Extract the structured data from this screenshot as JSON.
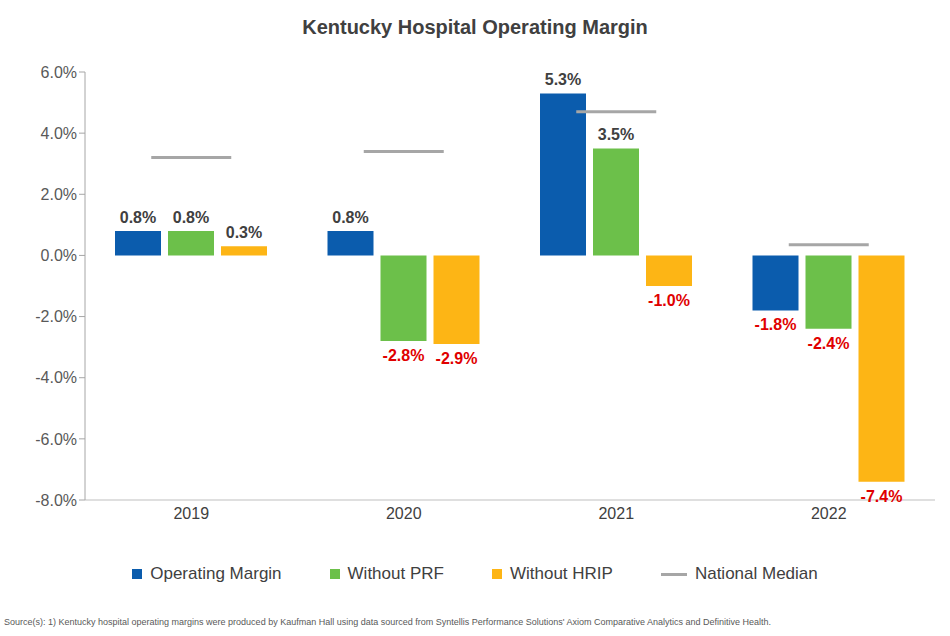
{
  "chart_data": {
    "type": "bar",
    "title": "Kentucky Hospital Operating Margin",
    "categories": [
      "2019",
      "2020",
      "2021",
      "2022"
    ],
    "series": [
      {
        "name": "Operating Margin",
        "type": "bar",
        "color": "#0B5CAD",
        "values": [
          0.8,
          0.8,
          5.3,
          -1.8
        ],
        "value_labels": [
          "0.8%",
          "0.8%",
          "5.3%",
          "-1.8%"
        ]
      },
      {
        "name": "Without PRF",
        "type": "bar",
        "color": "#6CC04A",
        "values": [
          0.8,
          -2.8,
          3.5,
          -2.4
        ],
        "value_labels": [
          "0.8%",
          "-2.8%",
          "3.5%",
          "-2.4%"
        ]
      },
      {
        "name": "Without HRIP",
        "type": "bar",
        "color": "#FDB515",
        "values": [
          0.3,
          -2.9,
          -1.0,
          -7.4
        ],
        "value_labels": [
          "0.3%",
          "-2.9%",
          "-1.0%",
          "-7.4%"
        ]
      },
      {
        "name": "National Median",
        "type": "line",
        "color": "#A6A6A6",
        "marker": "dash",
        "line_style": "none",
        "values": [
          3.2,
          3.4,
          4.7,
          0.35
        ]
      }
    ],
    "ylim": [
      -8,
      6
    ],
    "yticks": [
      {
        "value": -8,
        "label": "-8.0%"
      },
      {
        "value": -6,
        "label": "-6.0%"
      },
      {
        "value": -4,
        "label": "-4.0%"
      },
      {
        "value": -2,
        "label": "-2.0%"
      },
      {
        "value": 0,
        "label": "0.0%"
      },
      {
        "value": 2,
        "label": "2.0%"
      },
      {
        "value": 4,
        "label": "4.0%"
      },
      {
        "value": 6,
        "label": "6.0%"
      }
    ],
    "grid": false,
    "data_labels": true,
    "source": "Source(s): 1) Kentucky hospital operating margins were produced by Kaufman Hall using data sourced from Syntellis Performance Solutions' Axiom Comparative Analytics and Definitive Health."
  }
}
